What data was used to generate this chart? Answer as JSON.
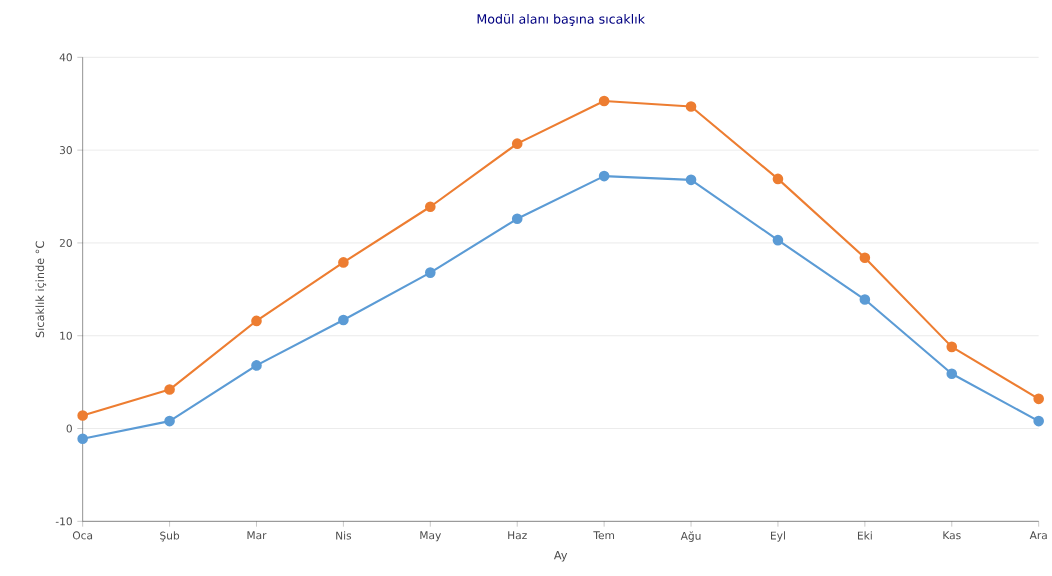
{
  "chart_data": {
    "type": "line",
    "title": "Modül alanı başına sıcaklık",
    "xlabel": "Ay",
    "ylabel": "Sıcaklık içinde °C",
    "categories": [
      "Oca",
      "Şub",
      "Mar",
      "Nis",
      "May",
      "Haz",
      "Tem",
      "Ağu",
      "Eyl",
      "Eki",
      "Kas",
      "Ara"
    ],
    "series": [
      {
        "color": "#5b9bd5",
        "values": [
          -1.1,
          0.8,
          6.8,
          11.7,
          16.8,
          22.6,
          27.2,
          26.8,
          20.3,
          13.9,
          5.9,
          0.8
        ]
      },
      {
        "color": "#ed7d31",
        "values": [
          1.4,
          4.2,
          11.6,
          17.9,
          23.9,
          30.7,
          35.3,
          34.7,
          26.9,
          18.4,
          8.8,
          3.2
        ]
      }
    ],
    "ylim": [
      -10,
      40
    ],
    "yticks": [
      -10,
      0,
      10,
      20,
      30,
      40
    ],
    "grid": "y",
    "marker": "circle",
    "line_style": "solid"
  }
}
